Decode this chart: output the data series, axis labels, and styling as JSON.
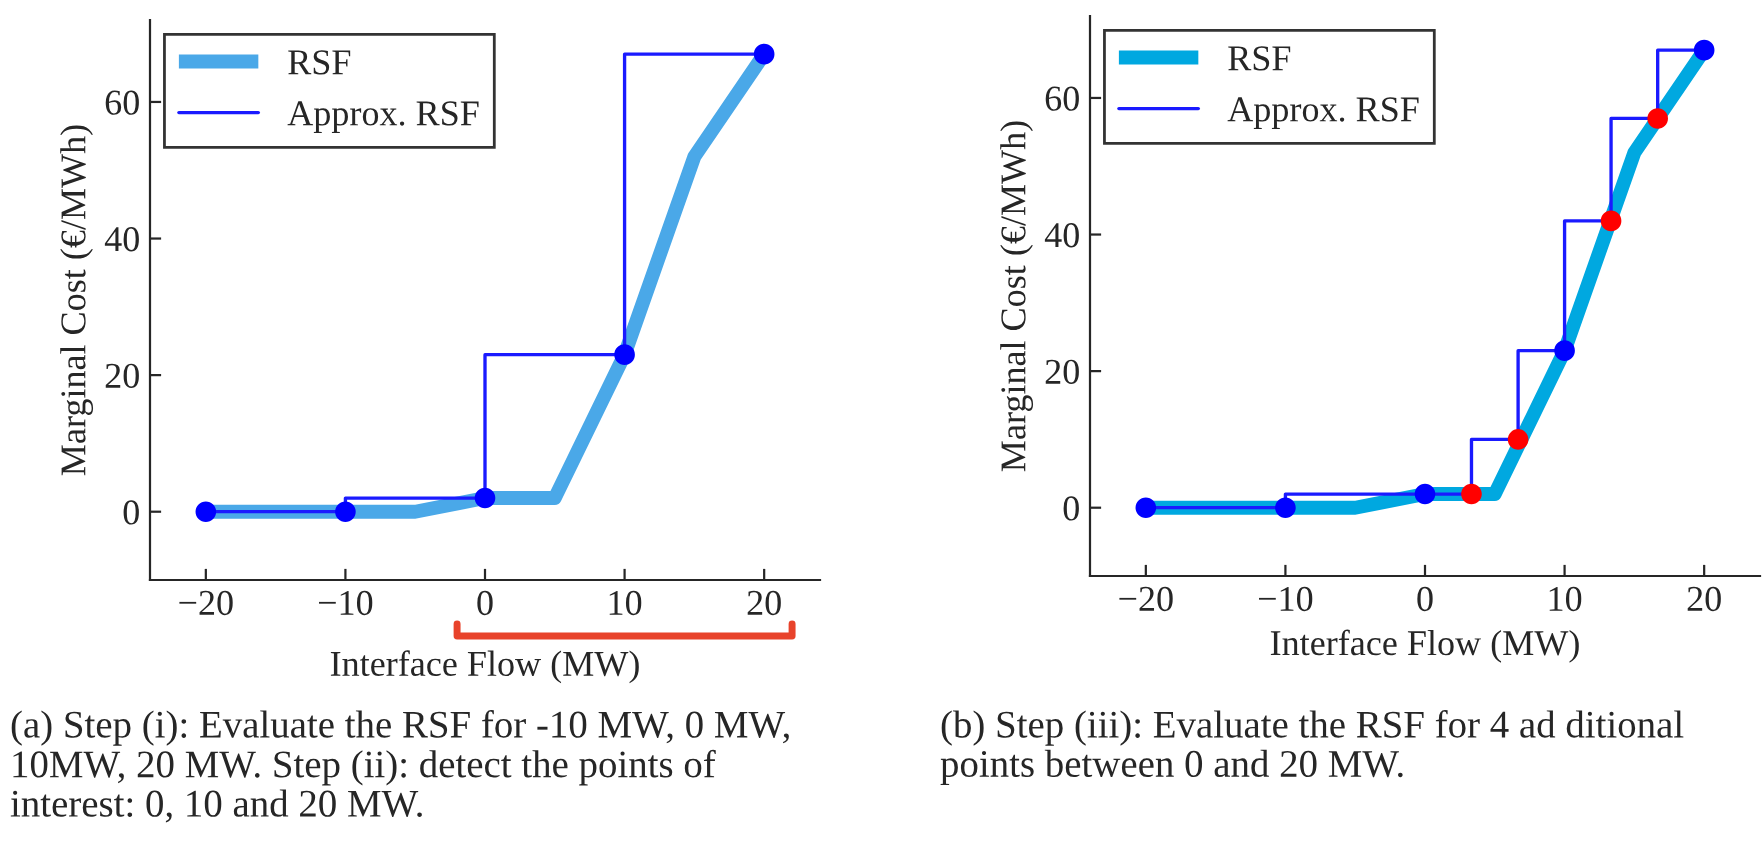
{
  "chart_data": [
    {
      "type": "line",
      "xlabel": "Interface Flow (MW)",
      "ylabel": "Marginal Cost (€/MWh)",
      "xlim": [
        -24,
        24
      ],
      "ylim": [
        -10,
        72
      ],
      "xticks": [
        -20,
        -10,
        0,
        10,
        20
      ],
      "yticks": [
        0,
        20,
        40,
        60
      ],
      "grid": false,
      "legend": "top left",
      "series": [
        {
          "name": "RSF",
          "color": "#4aa8e8",
          "x": [
            -20,
            -10,
            -5,
            0,
            5,
            10,
            15,
            20
          ],
          "values": [
            0,
            0,
            0,
            2,
            2,
            23,
            52,
            67
          ]
        },
        {
          "name": "Approx. RSF",
          "type": "step",
          "color": "#1a1aff",
          "x": [
            -20,
            -10,
            0,
            10,
            20
          ],
          "values": [
            0,
            0,
            2,
            23,
            67
          ]
        },
        {
          "type": "scatter",
          "color": "#0000ff",
          "x": [
            -20,
            -10,
            0,
            10,
            20
          ],
          "values": [
            0,
            0,
            2,
            23,
            67
          ]
        }
      ],
      "annotations": [
        "(a) Step (i): Evaluate the RSF for -10 MW, 0 MW, 10MW, 20 MW. Step (ii): detect the points of interest: 0, 10 and 20 MW."
      ]
    },
    {
      "type": "line",
      "xlabel": "Interface Flow (MW)",
      "ylabel": "Marginal Cost (€/MWh)",
      "xlim": [
        -24,
        24
      ],
      "ylim": [
        -10,
        72
      ],
      "xticks": [
        -20,
        -10,
        0,
        10,
        20
      ],
      "yticks": [
        0,
        20,
        40,
        60
      ],
      "grid": false,
      "legend": "top left",
      "series": [
        {
          "name": "RSF",
          "color": "#00a8e0",
          "x": [
            -20,
            -10,
            -5,
            0,
            5,
            10,
            15,
            20
          ],
          "values": [
            0,
            0,
            0,
            2,
            2,
            23,
            52,
            67
          ]
        },
        {
          "name": "Approx. RSF",
          "type": "step",
          "color": "#1a1aff",
          "x": [
            -20,
            -10,
            0,
            3.33,
            6.67,
            10,
            13.33,
            16.67,
            20
          ],
          "values": [
            0,
            0,
            2,
            2,
            10,
            23,
            42,
            57,
            67
          ]
        },
        {
          "type": "scatter",
          "color": "#0000ff",
          "x": [
            -20,
            -10,
            0,
            10,
            20
          ],
          "values": [
            0,
            0,
            2,
            23,
            67
          ]
        },
        {
          "type": "scatter",
          "color": "#ff0000",
          "x": [
            3.33,
            6.67,
            13.33,
            16.67
          ],
          "values": [
            2,
            10,
            42,
            57
          ]
        }
      ],
      "annotations": [
        "(b) Step (iii): Evaluate the RSF for 4 ad ditional points between 0 and 20 MW."
      ]
    }
  ]
}
